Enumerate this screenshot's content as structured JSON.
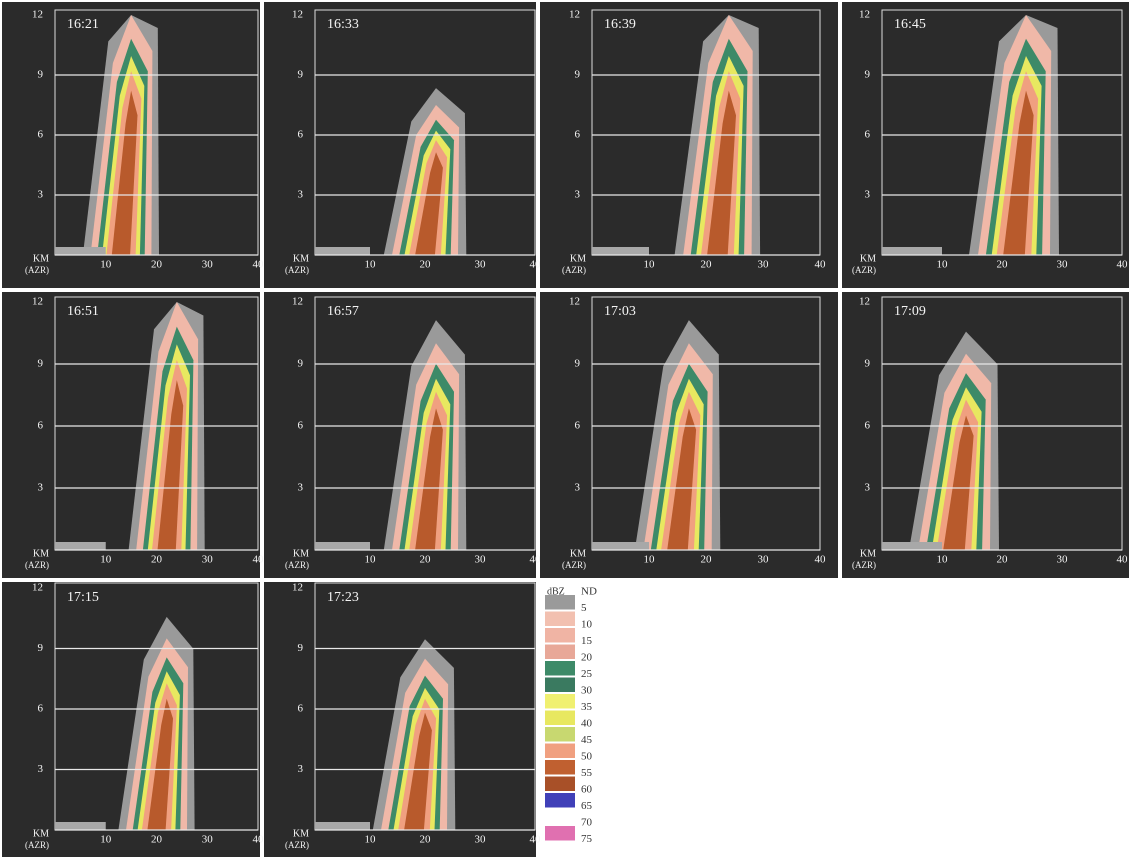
{
  "panels": [
    {
      "time": "16:21"
    },
    {
      "time": "16:33"
    },
    {
      "time": "16:39"
    },
    {
      "time": "16:45"
    },
    {
      "time": "16:51"
    },
    {
      "time": "16:57"
    },
    {
      "time": "17:03"
    },
    {
      "time": "17:09"
    },
    {
      "time": "17:15"
    },
    {
      "time": "17:23"
    }
  ],
  "axis": {
    "y": [
      "12",
      "9",
      "6",
      "3"
    ],
    "x": [
      "10",
      "20",
      "30",
      "40"
    ],
    "unit": "KM",
    "unit_sub": "(AZR)"
  },
  "legend": {
    "unit": "dBZ",
    "labels": [
      "ND",
      "5",
      "10",
      "15",
      "20",
      "25",
      "30",
      "35",
      "40",
      "45",
      "50",
      "55",
      "60",
      "65",
      "70",
      "75"
    ]
  }
}
